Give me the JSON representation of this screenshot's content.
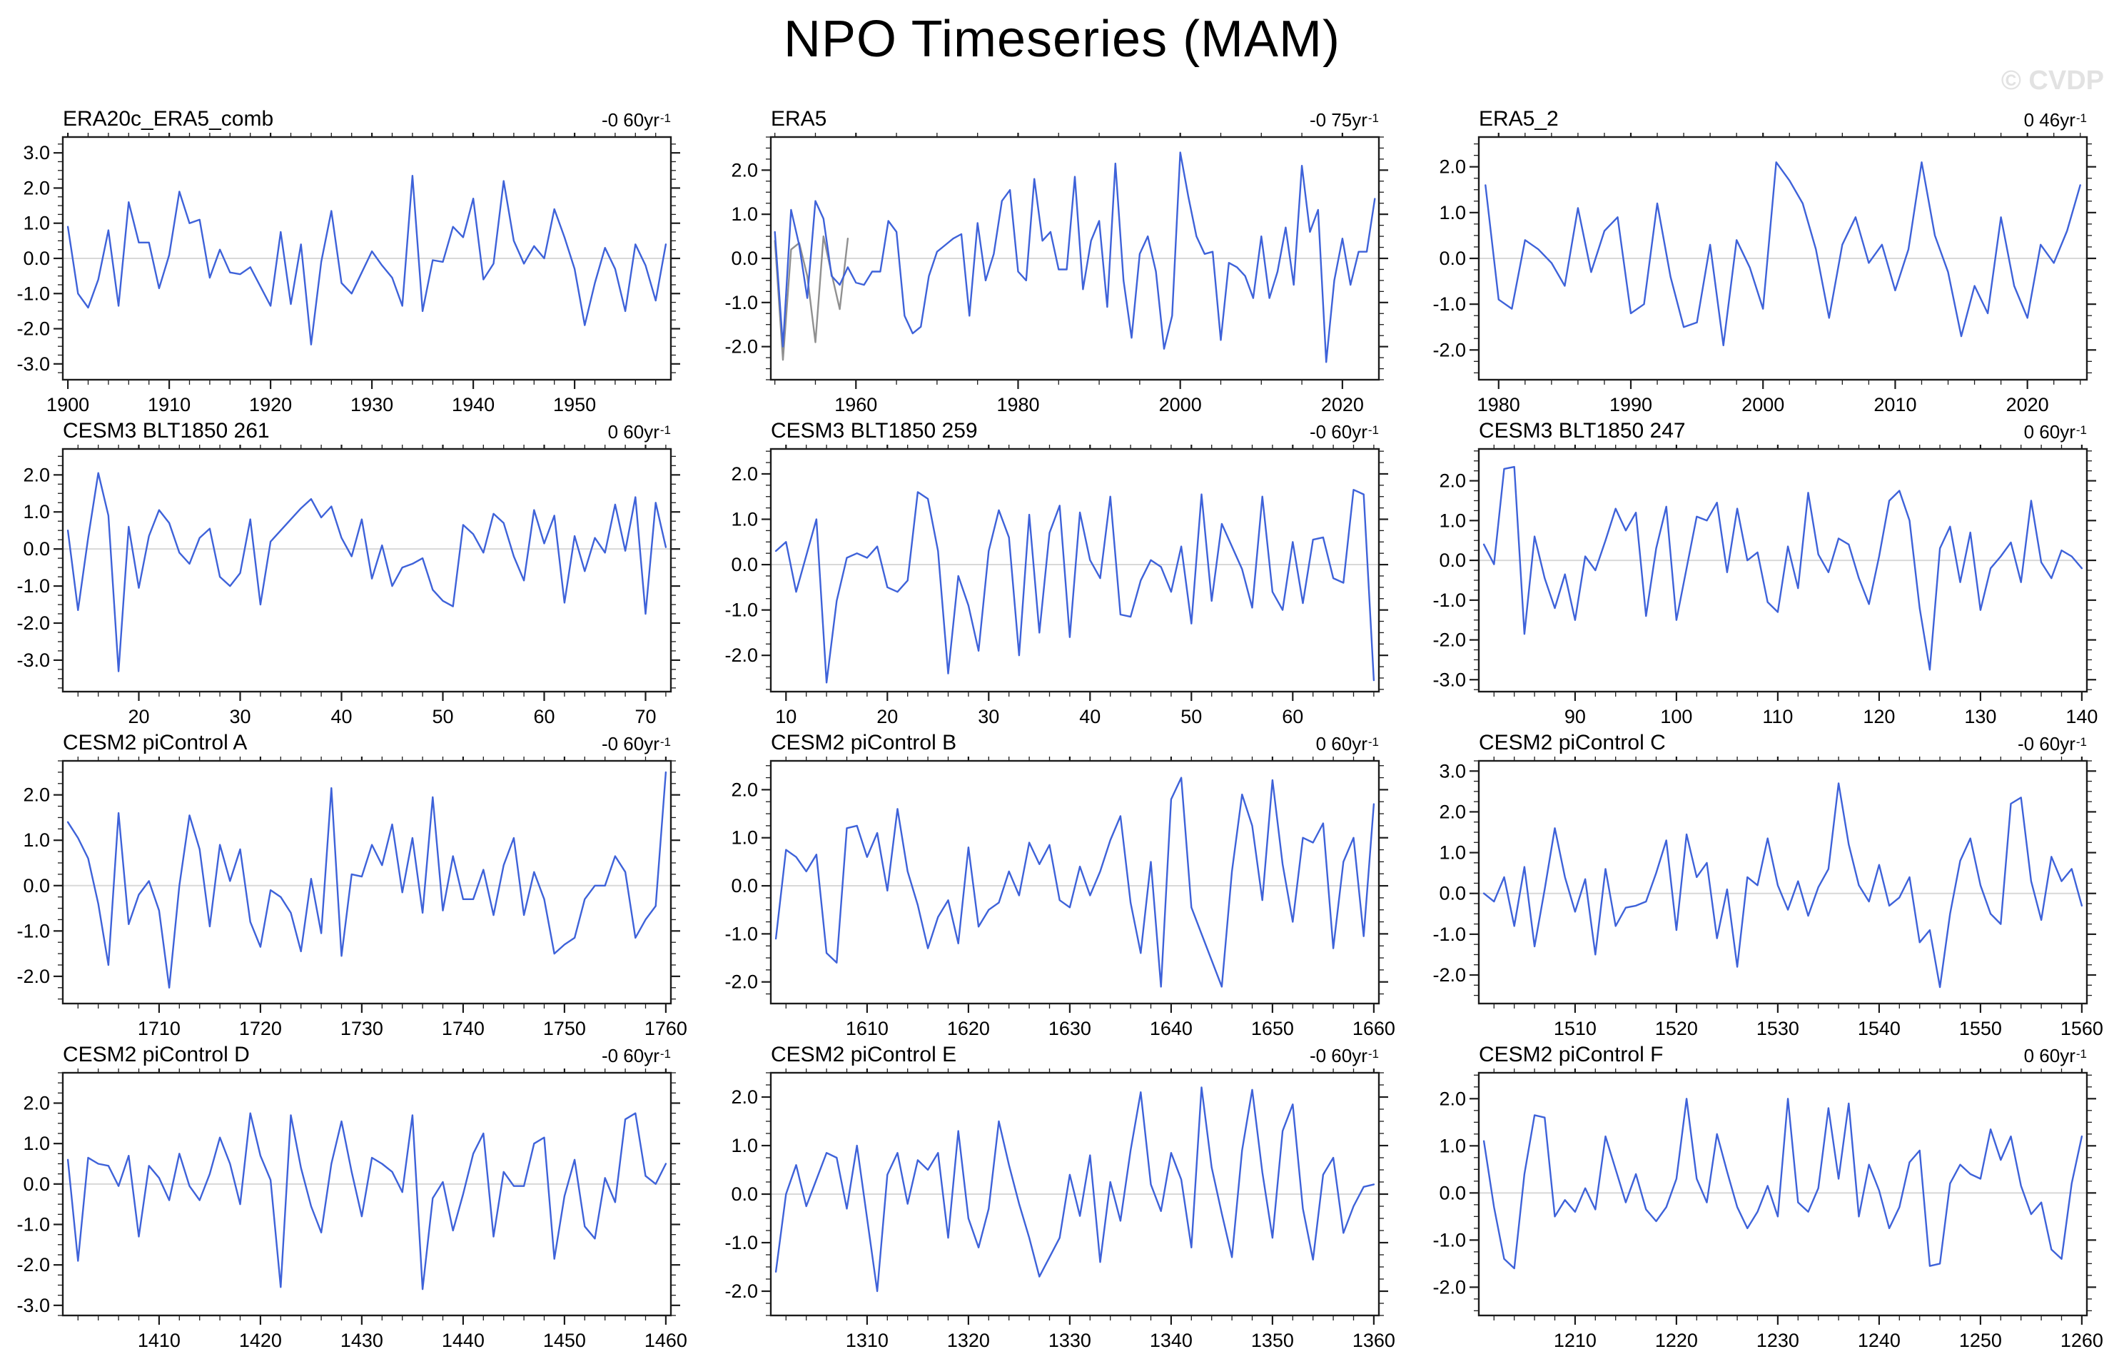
{
  "title": "NPO Timeseries (MAM)",
  "watermark": "© CVDP",
  "colors": {
    "line": "#3e62d9",
    "overlap_line": "#909090",
    "zero_line": "#d8d8d8",
    "axis": "#1c1c1c",
    "watermark": "#e2e2e2"
  },
  "chart_data": [
    {
      "type": "line",
      "title": "ERA20c_ERA5_comb",
      "trend_text": "-0 60yr",
      "trend_exp": "-1",
      "x_start": 1900,
      "xticks": [
        1900,
        1910,
        1920,
        1930,
        1940,
        1950
      ],
      "x_minor_step": 2,
      "ylim": [
        -3.45,
        3.45
      ],
      "yticks": [
        3.0,
        2.0,
        1.0,
        0.0,
        -1.0,
        -2.0,
        -3.0
      ],
      "y_minor_step": 0.25,
      "values": [
        0.9,
        -1.0,
        -1.4,
        -0.6,
        0.8,
        -1.35,
        1.6,
        0.45,
        0.45,
        -0.85,
        0.1,
        1.9,
        1.0,
        1.1,
        -0.55,
        0.25,
        -0.4,
        -0.45,
        -0.25,
        -0.8,
        -1.35,
        0.75,
        -1.3,
        0.4,
        -2.45,
        -0.1,
        1.35,
        -0.7,
        -1.0,
        -0.4,
        0.2,
        -0.2,
        -0.55,
        -1.35,
        2.35,
        -1.5,
        -0.05,
        -0.1,
        0.9,
        0.6,
        1.7,
        -0.6,
        -0.15,
        2.2,
        0.5,
        -0.15,
        0.35,
        0.0,
        1.4,
        0.6,
        -0.3,
        -1.9,
        -0.7,
        0.3,
        -0.3,
        -1.5,
        0.4,
        -0.2,
        -1.2,
        0.4
      ]
    },
    {
      "type": "line",
      "title": "ERA5",
      "trend_text": "-0 75yr",
      "trend_exp": "-1",
      "x_start": 1950,
      "xticks": [
        1960,
        1980,
        2000,
        2020
      ],
      "x_minor_step": 5,
      "ylim": [
        -2.75,
        2.75
      ],
      "yticks": [
        2.0,
        1.0,
        0.0,
        -1.0,
        -2.0
      ],
      "y_minor_step": 0.25,
      "values": [
        0.6,
        -2.0,
        1.1,
        0.3,
        -0.9,
        1.3,
        0.9,
        -0.4,
        -0.6,
        -0.2,
        -0.55,
        -0.6,
        -0.3,
        -0.3,
        0.85,
        0.6,
        -1.3,
        -1.7,
        -1.55,
        -0.4,
        0.15,
        0.3,
        0.45,
        0.55,
        -1.3,
        0.8,
        -0.5,
        0.1,
        1.3,
        1.55,
        -0.3,
        -0.5,
        1.8,
        0.4,
        0.6,
        -0.25,
        -0.25,
        1.85,
        -0.7,
        0.4,
        0.85,
        -1.1,
        2.15,
        -0.5,
        -1.8,
        0.1,
        0.5,
        -0.3,
        -2.05,
        -1.3,
        2.4,
        1.4,
        0.5,
        0.1,
        0.15,
        -1.85,
        -0.1,
        -0.2,
        -0.4,
        -0.9,
        0.5,
        -0.9,
        -0.3,
        0.7,
        -0.6,
        2.1,
        0.6,
        1.1,
        -2.35,
        -0.5,
        0.45,
        -0.6,
        0.15,
        0.15,
        1.35
      ],
      "overlap": {
        "x_start": 1950,
        "values": [
          0.4,
          -2.3,
          0.2,
          0.35,
          -0.4,
          -1.9,
          0.5,
          -0.35,
          -1.15,
          0.45
        ]
      }
    },
    {
      "type": "line",
      "title": "ERA5_2",
      "trend_text": "0 46yr",
      "trend_exp": "-1",
      "x_start": 1979,
      "xticks": [
        1980,
        1990,
        2000,
        2010,
        2020
      ],
      "x_minor_step": 2,
      "ylim": [
        -2.65,
        2.65
      ],
      "yticks": [
        2.0,
        1.0,
        0.0,
        -1.0,
        -2.0
      ],
      "y_minor_step": 0.25,
      "values": [
        1.6,
        -0.9,
        -1.1,
        0.4,
        0.2,
        -0.1,
        -0.6,
        1.1,
        -0.3,
        0.6,
        0.9,
        -1.2,
        -1.0,
        1.2,
        -0.4,
        -1.5,
        -1.4,
        0.3,
        -1.9,
        0.4,
        -0.2,
        -1.1,
        2.1,
        1.7,
        1.2,
        0.2,
        -1.3,
        0.3,
        0.9,
        -0.1,
        0.3,
        -0.7,
        0.2,
        2.1,
        0.5,
        -0.3,
        -1.7,
        -0.6,
        -1.2,
        0.9,
        -0.6,
        -1.3,
        0.3,
        -0.1,
        0.6,
        1.6
      ]
    },
    {
      "type": "line",
      "title": "CESM3 BLT1850 261",
      "trend_text": "0 60yr",
      "trend_exp": "-1",
      "x_start": 13,
      "xticks": [
        20,
        30,
        40,
        50,
        60,
        70
      ],
      "x_minor_step": 2,
      "ylim": [
        -3.85,
        2.7
      ],
      "yticks": [
        2.0,
        1.0,
        0.0,
        -1.0,
        -2.0,
        -3.0
      ],
      "y_minor_step": 0.25,
      "values": [
        0.5,
        -1.65,
        0.3,
        2.05,
        0.9,
        -3.3,
        0.6,
        -1.05,
        0.35,
        1.05,
        0.7,
        -0.1,
        -0.4,
        0.3,
        0.55,
        -0.75,
        -1.0,
        -0.65,
        0.8,
        -1.5,
        0.2,
        0.5,
        0.8,
        1.1,
        1.35,
        0.85,
        1.15,
        0.3,
        -0.2,
        0.8,
        -0.8,
        0.1,
        -1.0,
        -0.5,
        -0.4,
        -0.25,
        -1.1,
        -1.4,
        -1.55,
        0.65,
        0.4,
        -0.1,
        0.95,
        0.7,
        -0.2,
        -0.85,
        1.05,
        0.15,
        0.9,
        -1.45,
        0.35,
        -0.6,
        0.3,
        -0.1,
        1.2,
        -0.05,
        1.4,
        -1.75,
        1.25,
        0.05
      ]
    },
    {
      "type": "line",
      "title": "CESM3 BLT1850 259",
      "trend_text": "-0 60yr",
      "trend_exp": "-1",
      "x_start": 9,
      "xticks": [
        10,
        20,
        30,
        40,
        50,
        60
      ],
      "x_minor_step": 2,
      "ylim": [
        -2.8,
        2.55
      ],
      "yticks": [
        2.0,
        1.0,
        0.0,
        -1.0,
        -2.0
      ],
      "y_minor_step": 0.25,
      "values": [
        0.3,
        0.5,
        -0.6,
        0.2,
        1.0,
        -2.6,
        -0.8,
        0.15,
        0.25,
        0.15,
        0.4,
        -0.5,
        -0.6,
        -0.35,
        1.6,
        1.45,
        0.3,
        -2.4,
        -0.25,
        -0.9,
        -1.9,
        0.3,
        1.2,
        0.6,
        -2.0,
        1.1,
        -1.5,
        0.7,
        1.3,
        -1.6,
        1.15,
        0.1,
        -0.3,
        1.5,
        -1.1,
        -1.15,
        -0.35,
        0.1,
        -0.05,
        -0.6,
        0.4,
        -1.3,
        1.55,
        -0.8,
        0.9,
        0.4,
        -0.1,
        -0.95,
        1.5,
        -0.6,
        -1.0,
        0.5,
        -0.85,
        0.55,
        0.6,
        -0.3,
        -0.4,
        1.65,
        1.55,
        -2.55
      ]
    },
    {
      "type": "line",
      "title": "CESM3 BLT1850 247",
      "trend_text": "0 60yr",
      "trend_exp": "-1",
      "x_start": 81,
      "xticks": [
        90,
        100,
        110,
        120,
        130,
        140
      ],
      "x_minor_step": 2,
      "ylim": [
        -3.3,
        2.8
      ],
      "yticks": [
        2.0,
        1.0,
        0.0,
        -1.0,
        -2.0,
        -3.0
      ],
      "y_minor_step": 0.25,
      "values": [
        0.4,
        -0.1,
        2.3,
        2.35,
        -1.85,
        0.6,
        -0.45,
        -1.2,
        -0.35,
        -1.5,
        0.1,
        -0.25,
        0.5,
        1.3,
        0.75,
        1.2,
        -1.4,
        0.3,
        1.35,
        -1.5,
        -0.2,
        1.1,
        1.0,
        1.45,
        -0.3,
        1.3,
        0.0,
        0.2,
        -1.05,
        -1.3,
        0.35,
        -0.7,
        1.7,
        0.15,
        -0.3,
        0.55,
        0.4,
        -0.45,
        -1.1,
        0.1,
        1.5,
        1.75,
        1.0,
        -1.2,
        -2.75,
        0.3,
        0.85,
        -0.55,
        0.7,
        -1.25,
        -0.2,
        0.1,
        0.45,
        -0.55,
        1.5,
        -0.05,
        -0.45,
        0.25,
        0.1,
        -0.2
      ]
    },
    {
      "type": "line",
      "title": "CESM2 piControl A",
      "trend_text": "-0 60yr",
      "trend_exp": "-1",
      "x_start": 1701,
      "xticks": [
        1710,
        1720,
        1730,
        1740,
        1750,
        1760
      ],
      "x_minor_step": 2,
      "ylim": [
        -2.6,
        2.75
      ],
      "yticks": [
        2.0,
        1.0,
        0.0,
        -1.0,
        -2.0
      ],
      "y_minor_step": 0.25,
      "values": [
        1.4,
        1.05,
        0.6,
        -0.4,
        -1.75,
        1.6,
        -0.85,
        -0.2,
        0.1,
        -0.55,
        -2.25,
        0.0,
        1.55,
        0.8,
        -0.9,
        0.9,
        0.1,
        0.8,
        -0.8,
        -1.35,
        -0.1,
        -0.25,
        -0.6,
        -1.45,
        0.15,
        -1.05,
        2.15,
        -1.55,
        0.25,
        0.2,
        0.9,
        0.45,
        1.35,
        -0.15,
        1.05,
        -0.6,
        1.95,
        -0.55,
        0.65,
        -0.3,
        -0.3,
        0.35,
        -0.65,
        0.45,
        1.05,
        -0.65,
        0.3,
        -0.3,
        -1.5,
        -1.3,
        -1.15,
        -0.3,
        0.0,
        0.0,
        0.65,
        0.3,
        -1.15,
        -0.75,
        -0.45,
        2.5
      ]
    },
    {
      "type": "line",
      "title": "CESM2 piControl B",
      "trend_text": "0 60yr",
      "trend_exp": "-1",
      "x_start": 1601,
      "xticks": [
        1610,
        1620,
        1630,
        1640,
        1650,
        1660
      ],
      "x_minor_step": 2,
      "ylim": [
        -2.45,
        2.6
      ],
      "yticks": [
        2.0,
        1.0,
        0.0,
        -1.0,
        -2.0
      ],
      "y_minor_step": 0.25,
      "values": [
        -1.1,
        0.75,
        0.6,
        0.3,
        0.65,
        -1.4,
        -1.6,
        1.2,
        1.25,
        0.6,
        1.1,
        -0.1,
        1.6,
        0.3,
        -0.4,
        -1.3,
        -0.65,
        -0.3,
        -1.2,
        0.8,
        -0.85,
        -0.5,
        -0.35,
        0.3,
        -0.2,
        0.9,
        0.45,
        0.85,
        -0.3,
        -0.45,
        0.4,
        -0.2,
        0.3,
        0.95,
        1.45,
        -0.35,
        -1.4,
        0.5,
        -2.1,
        1.8,
        2.25,
        -0.45,
        -1.0,
        -1.55,
        -2.1,
        0.3,
        1.9,
        1.25,
        -0.3,
        2.2,
        0.45,
        -0.75,
        1.0,
        0.9,
        1.3,
        -1.3,
        0.5,
        1.0,
        -1.05,
        1.7
      ]
    },
    {
      "type": "line",
      "title": "CESM2 piControl C",
      "trend_text": "-0 60yr",
      "trend_exp": "-1",
      "x_start": 1501,
      "xticks": [
        1510,
        1520,
        1530,
        1540,
        1550,
        1560
      ],
      "x_minor_step": 2,
      "ylim": [
        -2.7,
        3.25
      ],
      "yticks": [
        3.0,
        2.0,
        1.0,
        0.0,
        -1.0,
        -2.0
      ],
      "y_minor_step": 0.25,
      "values": [
        0.0,
        -0.2,
        0.4,
        -0.8,
        0.65,
        -1.3,
        0.1,
        1.6,
        0.4,
        -0.45,
        0.35,
        -1.5,
        0.6,
        -0.8,
        -0.35,
        -0.3,
        -0.2,
        0.5,
        1.3,
        -0.9,
        1.45,
        0.4,
        0.75,
        -1.1,
        0.1,
        -1.8,
        0.4,
        0.2,
        1.35,
        0.2,
        -0.4,
        0.3,
        -0.55,
        0.15,
        0.6,
        2.7,
        1.2,
        0.2,
        -0.2,
        0.7,
        -0.3,
        -0.1,
        0.4,
        -1.2,
        -0.9,
        -2.3,
        -0.5,
        0.8,
        1.35,
        0.2,
        -0.5,
        -0.75,
        2.2,
        2.35,
        0.3,
        -0.65,
        0.9,
        0.3,
        0.6,
        -0.3
      ]
    },
    {
      "type": "line",
      "title": "CESM2 piControl D",
      "trend_text": "-0 60yr",
      "trend_exp": "-1",
      "x_start": 1401,
      "xticks": [
        1410,
        1420,
        1430,
        1440,
        1450,
        1460
      ],
      "x_minor_step": 2,
      "ylim": [
        -3.25,
        2.75
      ],
      "yticks": [
        2.0,
        1.0,
        0.0,
        -1.0,
        -2.0,
        -3.0
      ],
      "y_minor_step": 0.25,
      "values": [
        0.6,
        -1.9,
        0.65,
        0.5,
        0.45,
        -0.05,
        0.7,
        -1.3,
        0.45,
        0.15,
        -0.4,
        0.75,
        -0.05,
        -0.4,
        0.25,
        1.15,
        0.5,
        -0.5,
        1.75,
        0.7,
        0.1,
        -2.55,
        1.7,
        0.4,
        -0.55,
        -1.2,
        0.5,
        1.55,
        0.3,
        -0.8,
        0.65,
        0.5,
        0.3,
        -0.2,
        1.7,
        -2.6,
        -0.35,
        0.05,
        -1.15,
        -0.25,
        0.75,
        1.25,
        -1.3,
        0.3,
        -0.05,
        -0.05,
        1.0,
        1.15,
        -1.85,
        -0.3,
        0.6,
        -1.05,
        -1.35,
        0.15,
        -0.45,
        1.6,
        1.75,
        0.2,
        0.0,
        0.5
      ]
    },
    {
      "type": "line",
      "title": "CESM2 piControl E",
      "trend_text": "-0 60yr",
      "trend_exp": "-1",
      "x_start": 1301,
      "xticks": [
        1310,
        1320,
        1330,
        1340,
        1350,
        1360
      ],
      "x_minor_step": 2,
      "ylim": [
        -2.5,
        2.5
      ],
      "yticks": [
        2.0,
        1.0,
        0.0,
        -1.0,
        -2.0
      ],
      "y_minor_step": 0.25,
      "values": [
        -1.6,
        0.0,
        0.6,
        -0.25,
        0.3,
        0.85,
        0.75,
        -0.3,
        1.0,
        -0.5,
        -2.0,
        0.4,
        0.85,
        -0.2,
        0.7,
        0.5,
        0.85,
        -0.9,
        1.3,
        -0.5,
        -1.1,
        -0.3,
        1.5,
        0.6,
        -0.2,
        -0.9,
        -1.7,
        -1.3,
        -0.9,
        0.4,
        -0.45,
        0.8,
        -1.4,
        0.25,
        -0.55,
        0.9,
        2.1,
        0.2,
        -0.35,
        0.85,
        0.3,
        -1.1,
        2.2,
        0.55,
        -0.4,
        -1.3,
        0.9,
        2.15,
        0.45,
        -0.9,
        1.3,
        1.85,
        -0.3,
        -1.35,
        0.4,
        0.75,
        -0.8,
        -0.25,
        0.15,
        0.2
      ]
    },
    {
      "type": "line",
      "title": "CESM2 piControl F",
      "trend_text": "0 60yr",
      "trend_exp": "-1",
      "x_start": 1201,
      "xticks": [
        1210,
        1220,
        1230,
        1240,
        1250,
        1260
      ],
      "x_minor_step": 2,
      "ylim": [
        -2.6,
        2.55
      ],
      "yticks": [
        2.0,
        1.0,
        0.0,
        -1.0,
        -2.0
      ],
      "y_minor_step": 0.25,
      "values": [
        1.1,
        -0.3,
        -1.4,
        -1.6,
        0.4,
        1.65,
        1.6,
        -0.5,
        -0.15,
        -0.4,
        0.1,
        -0.35,
        1.2,
        0.5,
        -0.2,
        0.4,
        -0.35,
        -0.6,
        -0.3,
        0.3,
        2.0,
        0.3,
        -0.2,
        1.25,
        0.45,
        -0.3,
        -0.75,
        -0.4,
        0.15,
        -0.5,
        2.0,
        -0.2,
        -0.4,
        0.1,
        1.8,
        0.3,
        1.9,
        -0.5,
        0.6,
        0.05,
        -0.75,
        -0.3,
        0.65,
        0.9,
        -1.55,
        -1.5,
        0.2,
        0.6,
        0.4,
        0.3,
        1.35,
        0.7,
        1.2,
        0.15,
        -0.45,
        -0.2,
        -1.2,
        -1.4,
        0.2,
        1.2
      ]
    }
  ]
}
